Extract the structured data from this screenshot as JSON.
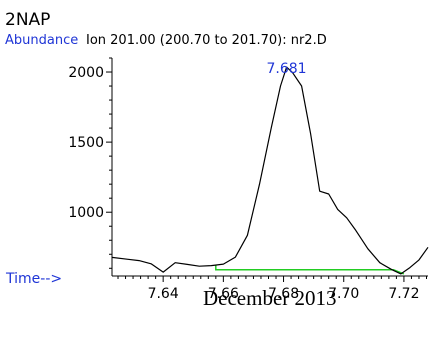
{
  "chart_data": {
    "type": "line",
    "title": "2NAP",
    "ylabel": "Abundance",
    "series_label": "Ion 201.00 (200.70 to 201.70): nr2.D",
    "xlabel": "Time-->",
    "footer": "December 2013",
    "peak_label": "7.681",
    "peak_label_x": 7.681,
    "xlim": [
      7.623,
      7.728
    ],
    "ylim": [
      545,
      2100
    ],
    "x_ticks": [
      7.64,
      7.66,
      7.68,
      7.7,
      7.72
    ],
    "x_tick_labels": [
      "7.64",
      "7.66",
      "7.68",
      "7.70",
      "7.72"
    ],
    "y_ticks": [
      1000,
      1500,
      2000
    ],
    "y_tick_labels": [
      "1000",
      "1500",
      "2000"
    ],
    "x_minor_step": 0.0025,
    "y_minor_step": 100,
    "series": [
      {
        "color": "#000000",
        "x": [
          7.623,
          7.628,
          7.632,
          7.636,
          7.64,
          7.644,
          7.648,
          7.652,
          7.656,
          7.66,
          7.664,
          7.668,
          7.672,
          7.676,
          7.679,
          7.681,
          7.683,
          7.686,
          7.689,
          7.692,
          7.695,
          7.698,
          7.701,
          7.704,
          7.708,
          7.712,
          7.716,
          7.719,
          7.722,
          7.725,
          7.728
        ],
        "y": [
          678,
          665,
          655,
          632,
          573,
          640,
          628,
          615,
          619,
          630,
          680,
          835,
          1200,
          1610,
          1900,
          2035,
          1995,
          1900,
          1560,
          1150,
          1130,
          1020,
          960,
          870,
          740,
          640,
          590,
          560,
          605,
          660,
          750
        ]
      }
    ],
    "baseline": {
      "color": "#22cc22",
      "x": [
        7.6575,
        7.6575,
        7.7165,
        7.72
      ],
      "y": [
        625,
        590,
        590,
        560
      ]
    }
  }
}
